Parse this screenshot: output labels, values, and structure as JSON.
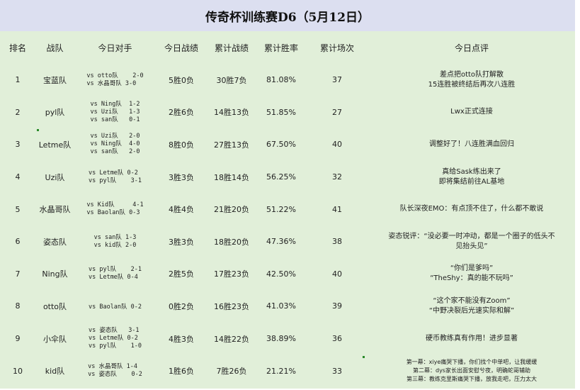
{
  "title": "传奇杯训练赛D6（5月12日）",
  "headers": [
    "排名",
    "战队",
    "今日对手",
    "今日战绩",
    "累计战绩",
    "累计胜率",
    "累计场次",
    "今日点评"
  ],
  "rows": [
    {
      "rank": "1",
      "team": "宝蓝队",
      "opponents": [
        "vs otto队    2-0",
        "vs 水晶哥队 3-0"
      ],
      "today": "5胜0负",
      "total": "30胜7负",
      "rate": "81.08%",
      "games": "37",
      "comment": [
        "差点把otto队打解散",
        "15连胜被终结后再次八连胜"
      ]
    },
    {
      "rank": "2",
      "team": "pyl队",
      "opponents": [
        "vs Ning队  1-2",
        "vs Uzi队   1-3",
        "vs san队   0-1"
      ],
      "today": "2胜6负",
      "total": "14胜13负",
      "rate": "51.85%",
      "games": "27",
      "comment": [
        "Lwx正式连接"
      ]
    },
    {
      "rank": "3",
      "team": "Letme队",
      "opponents": [
        "vs Uzi队   2-0",
        "vs Ning队  4-0",
        "vs san队   2-0"
      ],
      "today": "8胜0负",
      "total": "27胜13负",
      "rate": "67.50%",
      "games": "40",
      "comment": [
        "调整好了！八连胜满血回归"
      ]
    },
    {
      "rank": "4",
      "team": "Uzi队",
      "opponents": [
        "vs Letme队 0-2",
        "vs pyl队    3-1"
      ],
      "today": "3胜3负",
      "total": "18胜14负",
      "rate": "56.25%",
      "games": "32",
      "comment": [
        "真给Sask练出来了",
        "即将集结前往AL基地"
      ]
    },
    {
      "rank": "5",
      "team": "水晶哥队",
      "opponents": [
        "vs Kid队     4-1",
        "vs Baolan队 0-3"
      ],
      "today": "4胜4负",
      "total": "21胜20负",
      "rate": "51.22%",
      "games": "41",
      "comment": [
        "队长深夜EMO：有点顶不住了，什么都不敢说"
      ]
    },
    {
      "rank": "6",
      "team": "姿态队",
      "opponents": [
        "vs san队 1-3",
        "vs kid队 2-0"
      ],
      "today": "3胜3负",
      "total": "18胜20负",
      "rate": "47.36%",
      "games": "38",
      "comment": [
        "姿态锐评：“没必要一时冲动，都是一个圈子的低头不",
        "见抬头见”"
      ]
    },
    {
      "rank": "7",
      "team": "Ning队",
      "opponents": [
        "vs pyl队    2-1",
        "vs Letme队 0-4"
      ],
      "today": "2胜5负",
      "total": "17胜23负",
      "rate": "42.50%",
      "games": "40",
      "comment": [
        "“你们是爹吗”",
        "“TheShy：真的能不玩吗”"
      ]
    },
    {
      "rank": "8",
      "team": "otto队",
      "opponents": [
        "vs Baolan队 0-2"
      ],
      "today": "0胜2负",
      "total": "16胜23负",
      "rate": "41.03%",
      "games": "39",
      "comment": [
        "“这个家不能没有Zoom”",
        "“中野决裂后光速实际和解”"
      ]
    },
    {
      "rank": "9",
      "team": "小伞队",
      "opponents": [
        "vs 姿态队   3-1",
        "vs Letme队 0-2",
        "vs pyl队    1-0"
      ],
      "today": "4胜3负",
      "total": "14胜22负",
      "rate": "38.89%",
      "games": "36",
      "comment": [
        "硬币教练真有作用！进步显著"
      ]
    },
    {
      "rank": "10",
      "team": "kid队",
      "opponents": [
        "vs 水晶哥队 1-4",
        "vs 姿态队    0-2"
      ],
      "today": "1胜6负",
      "total": "7胜26负",
      "rate": "21.21%",
      "games": "33",
      "comment": [
        "第一幕：xiye痛哭下播，你们找个中单吧，让我缓缓",
        "第二幕：dys家长出面安慰兮夜，明确蛇哥辅助",
        "第三幕：教练克里斯痛哭下播，放我走吧，压力太大"
      ]
    }
  ]
}
